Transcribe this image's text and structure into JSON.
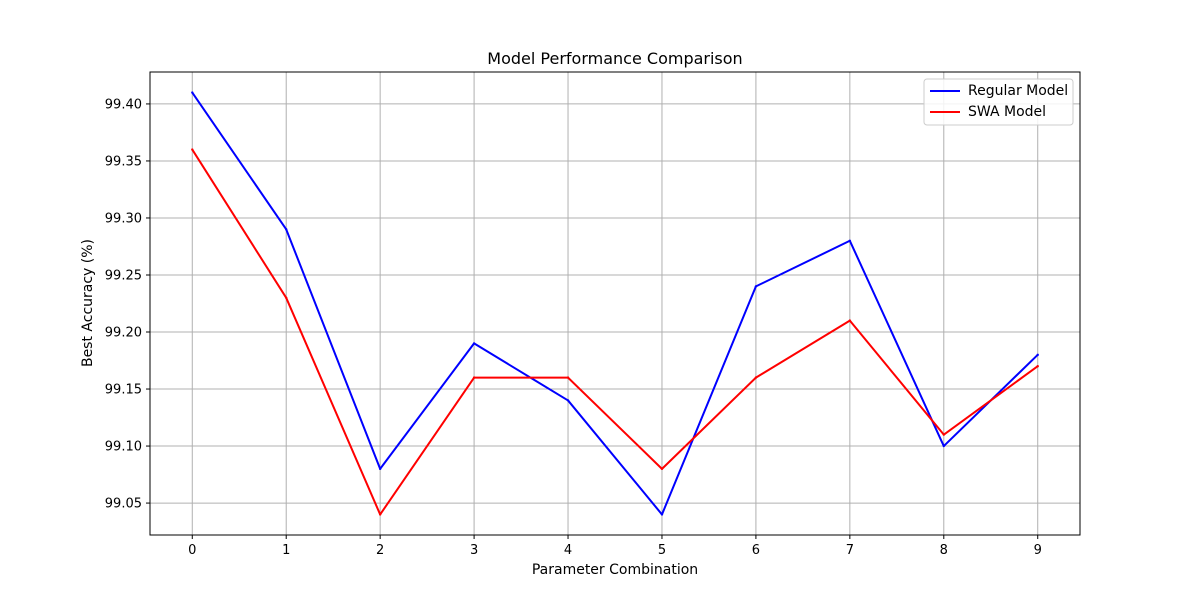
{
  "chart_data": {
    "type": "line",
    "title": "Model Performance Comparison",
    "xlabel": "Parameter Combination",
    "ylabel": "Best Accuracy (%)",
    "x": [
      0,
      1,
      2,
      3,
      4,
      5,
      6,
      7,
      8,
      9
    ],
    "xticks": [
      "0",
      "1",
      "2",
      "3",
      "4",
      "5",
      "6",
      "7",
      "8",
      "9"
    ],
    "yticks": [
      "99.05",
      "99.10",
      "99.15",
      "99.20",
      "99.25",
      "99.30",
      "99.35",
      "99.40"
    ],
    "xlim": [
      -0.45,
      9.45
    ],
    "ylim": [
      99.022,
      99.428
    ],
    "grid": true,
    "legend_position": "top-right",
    "series": [
      {
        "name": "Regular Model",
        "color": "#0000ff",
        "values": [
          99.41,
          99.29,
          99.08,
          99.19,
          99.14,
          99.04,
          99.24,
          99.28,
          99.1,
          99.18
        ]
      },
      {
        "name": "SWA Model",
        "color": "#ff0000",
        "values": [
          99.36,
          99.23,
          99.04,
          99.16,
          99.16,
          99.08,
          99.16,
          99.21,
          99.11,
          99.17
        ]
      }
    ]
  }
}
